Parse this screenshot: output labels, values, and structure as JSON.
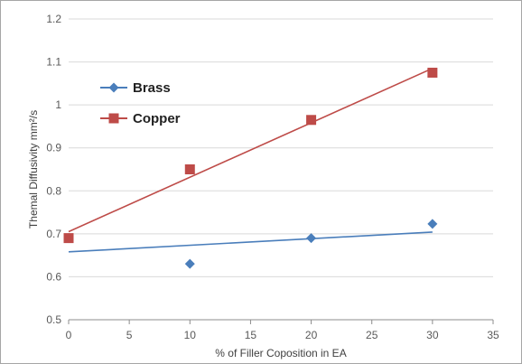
{
  "chart_data": {
    "type": "scatter",
    "xlabel": "% of Filler Coposition in EA",
    "ylabel": "Themal Diffusivity mm²/s",
    "xlim": [
      0,
      35
    ],
    "ylim": [
      0.5,
      1.2
    ],
    "xticks": [
      0,
      5,
      10,
      15,
      20,
      25,
      30,
      35
    ],
    "yticks": [
      0.5,
      0.6,
      0.7,
      0.8,
      0.9,
      1,
      1.1,
      1.2
    ],
    "xtick_labels": [
      "0",
      "5",
      "10",
      "15",
      "20",
      "25",
      "30",
      "35"
    ],
    "ytick_labels": [
      "0.5",
      "0.6",
      "0.7",
      "0.8",
      "0.9",
      "1",
      "1.1",
      "1.2"
    ],
    "grid": "horizontal",
    "legend_position": "upper-left",
    "series": [
      {
        "name": "Brass",
        "marker": "diamond",
        "color": "#4a7ebb",
        "x": [
          0,
          10,
          20,
          30
        ],
        "y": [
          0.69,
          0.63,
          0.69,
          0.723
        ],
        "trendline": {
          "x": [
            0,
            30
          ],
          "y": [
            0.658,
            0.704
          ]
        }
      },
      {
        "name": "Copper",
        "marker": "square",
        "color": "#be4b48",
        "x": [
          0,
          10,
          20,
          30
        ],
        "y": [
          0.69,
          0.85,
          0.965,
          1.075
        ],
        "trendline": {
          "x": [
            0,
            30
          ],
          "y": [
            0.705,
            1.085
          ]
        }
      }
    ]
  }
}
